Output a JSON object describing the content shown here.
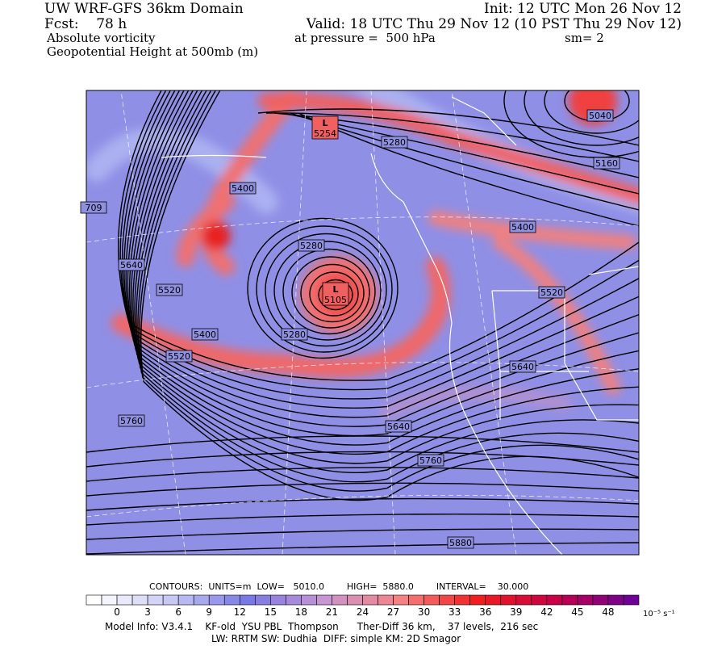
{
  "header": {
    "title": "UW WRF-GFS 36km Domain",
    "init": "Init: 12 UTC Mon 26 Nov 12",
    "forecast": "Fcst:    78 h",
    "valid": "Valid: 18 UTC Thu 29 Nov 12 (10 PST Thu 29 Nov 12)",
    "field": "Absolute vorticity",
    "pressure": "at pressure =  500 hPa",
    "smoothing": "sm= 2",
    "contour_field": "Geopotential Height at 500mb (m)"
  },
  "map": {
    "contour_labels": [
      "5040",
      "5160",
      "5280",
      "5400",
      "709",
      "5400",
      "5280",
      "5640",
      "5520",
      "5520",
      "5400",
      "5280",
      "5520",
      "5640",
      "5760",
      "5640",
      "5760",
      "5880"
    ],
    "lows": [
      {
        "marker": "L",
        "value": "5254"
      },
      {
        "marker": "L",
        "value": "5105"
      }
    ]
  },
  "footer": {
    "contours": "CONTOURS:  UNITS=m  LOW=   5010.0        HIGH=  5880.0        INTERVAL=    30.000",
    "colorbar_ticks": [
      0,
      3,
      6,
      9,
      12,
      15,
      18,
      21,
      24,
      27,
      30,
      33,
      36,
      39,
      42,
      45,
      48
    ],
    "colorbar_unit": "10⁻⁵ s⁻¹",
    "model_info": "Model Info: V3.4.1    KF-old  YSU PBL  Thompson      Ther-Diff 36 km,    37 levels,  216 sec",
    "physics": "LW: RRTM SW: Dudhia  DIFF: simple KM: 2D Smagor"
  }
}
